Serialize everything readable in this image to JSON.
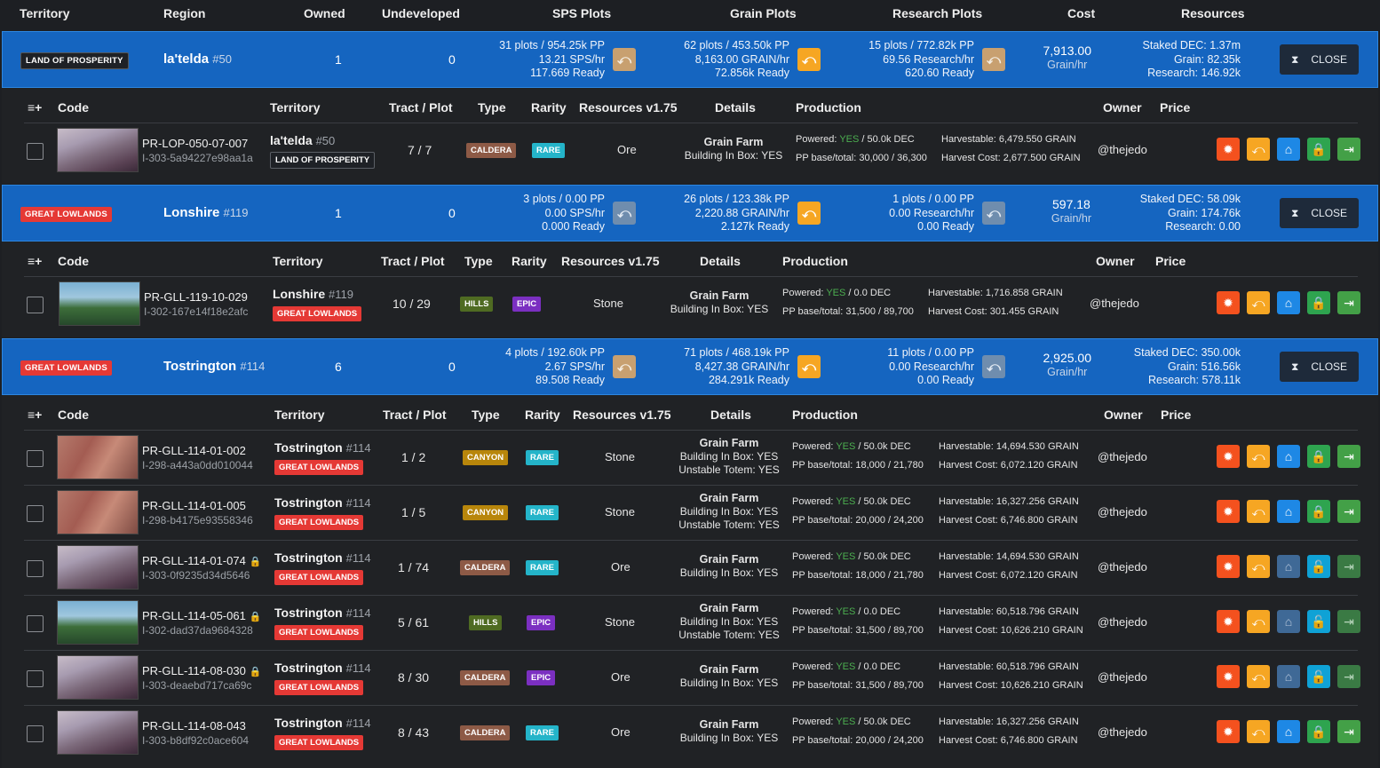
{
  "headers": {
    "territory": "Territory",
    "region": "Region",
    "owned": "Owned",
    "undeveloped": "Undeveloped",
    "sps": "SPS Plots",
    "grain": "Grain Plots",
    "research": "Research Plots",
    "cost": "Cost",
    "resources": "Resources"
  },
  "sub_headers": {
    "menu": "≡+",
    "code": "Code",
    "territory": "Territory",
    "tract": "Tract / Plot",
    "type": "Type",
    "rarity": "Rarity",
    "resources": "Resources v1.75",
    "details": "Details",
    "production": "Production",
    "owner": "Owner",
    "price": "Price"
  },
  "labels": {
    "close": "CLOSE",
    "grain_hr": "Grain/hr",
    "powered": "Powered:",
    "pp": "PP base/total:",
    "harvestable": "Harvestable:",
    "harvest_cost": "Harvest Cost:"
  },
  "groups": [
    {
      "tag": "LAND OF PROSPERITY",
      "name": "la'telda",
      "num": "#50",
      "owned": "1",
      "undeveloped": "0",
      "sps": [
        "31 plots / 954.25k PP",
        "13.21 SPS/hr",
        "117.669 Ready"
      ],
      "grain": [
        "62 plots / 453.50k PP",
        "8,163.00 GRAIN/hr",
        "72.856k Ready"
      ],
      "research": [
        "15 plots / 772.82k PP",
        "69.56 Research/hr",
        "620.60 Ready"
      ],
      "cost": "7,913.00",
      "res": [
        "Staked DEC: 1.37m",
        "Grain: 82.35k",
        "Research: 146.92k"
      ],
      "rows": [
        {
          "code": "PR-LOP-050-07-007",
          "hash": "I-303-5a94227e98aa1a",
          "tname": "la'telda",
          "tnum": "#50",
          "tag": "LAND OF PROSPERITY",
          "tract": "7 / 7",
          "type": "CALDERA",
          "rarity": "RARE",
          "resource": "Ore",
          "details": [
            "Grain Farm",
            "Building In Box: YES"
          ],
          "powered": "YES",
          "dec": "/ 50.0k DEC",
          "pp": "30,000 / 36,300",
          "harvestable": "6,479.550 GRAIN",
          "harvest_cost": "2,677.500 GRAIN",
          "owner": "@thejedo"
        }
      ]
    },
    {
      "tag": "GREAT LOWLANDS",
      "name": "Lonshire",
      "num": "#119",
      "owned": "1",
      "undeveloped": "0",
      "sps": [
        "3 plots / 0.00 PP",
        "0.00 SPS/hr",
        "0.000 Ready"
      ],
      "grain": [
        "26 plots / 123.38k PP",
        "2,220.88 GRAIN/hr",
        "2.127k Ready"
      ],
      "research": [
        "1 plots / 0.00 PP",
        "0.00 Research/hr",
        "0.00 Ready"
      ],
      "cost": "597.18",
      "res": [
        "Staked DEC: 58.09k",
        "Grain: 174.76k",
        "Research: 0.00"
      ],
      "rows": [
        {
          "code": "PR-GLL-119-10-029",
          "hash": "I-302-167e14f18e2afc",
          "tname": "Lonshire",
          "tnum": "#119",
          "tag": "GREAT LOWLANDS",
          "tract": "10 / 29",
          "type": "HILLS",
          "rarity": "EPIC",
          "resource": "Stone",
          "details": [
            "Grain Farm",
            "Building In Box: YES"
          ],
          "powered": "YES",
          "dec": "/ 0.0 DEC",
          "pp": "31,500 / 89,700",
          "harvestable": "1,716.858 GRAIN",
          "harvest_cost": "301.455 GRAIN",
          "owner": "@thejedo"
        }
      ]
    },
    {
      "tag": "GREAT LOWLANDS",
      "name": "Tostrington",
      "num": "#114",
      "owned": "6",
      "undeveloped": "0",
      "sps": [
        "4 plots / 192.60k PP",
        "2.67 SPS/hr",
        "89.508 Ready"
      ],
      "grain": [
        "71 plots / 468.19k PP",
        "8,427.38 GRAIN/hr",
        "284.291k Ready"
      ],
      "research": [
        "11 plots / 0.00 PP",
        "0.00 Research/hr",
        "0.00 Ready"
      ],
      "cost": "2,925.00",
      "res": [
        "Staked DEC: 350.00k",
        "Grain: 516.56k",
        "Research: 578.11k"
      ],
      "rows": [
        {
          "code": "PR-GLL-114-01-002",
          "hash": "I-298-a443a0dd010044",
          "tname": "Tostrington",
          "tnum": "#114",
          "tag": "GREAT LOWLANDS",
          "tract": "1 / 2",
          "type": "CANYON",
          "rarity": "RARE",
          "resource": "Stone",
          "details": [
            "Grain Farm",
            "Building In Box: YES",
            "Unstable Totem: YES"
          ],
          "powered": "YES",
          "dec": "/ 50.0k DEC",
          "pp": "18,000 / 21,780",
          "harvestable": "14,694.530 GRAIN",
          "harvest_cost": "6,072.120 GRAIN",
          "owner": "@thejedo"
        },
        {
          "code": "PR-GLL-114-01-005",
          "hash": "I-298-b4175e93558346",
          "tname": "Tostrington",
          "tnum": "#114",
          "tag": "GREAT LOWLANDS",
          "tract": "1 / 5",
          "type": "CANYON",
          "rarity": "RARE",
          "resource": "Stone",
          "details": [
            "Grain Farm",
            "Building In Box: YES",
            "Unstable Totem: YES"
          ],
          "powered": "YES",
          "dec": "/ 50.0k DEC",
          "pp": "20,000 / 24,200",
          "harvestable": "16,327.256 GRAIN",
          "harvest_cost": "6,746.800 GRAIN",
          "owner": "@thejedo"
        },
        {
          "code": "PR-GLL-114-01-074",
          "hash": "I-303-0f9235d34d5646",
          "tname": "Tostrington",
          "tnum": "#114",
          "tag": "GREAT LOWLANDS",
          "tract": "1 / 74",
          "type": "CALDERA",
          "rarity": "RARE",
          "resource": "Ore",
          "details": [
            "Grain Farm",
            "Building In Box: YES"
          ],
          "powered": "YES",
          "dec": "/ 50.0k DEC",
          "pp": "18,000 / 21,780",
          "harvestable": "14,694.530 GRAIN",
          "harvest_cost": "6,072.120 GRAIN",
          "owner": "@thejedo"
        },
        {
          "code": "PR-GLL-114-05-061",
          "hash": "I-302-dad37da9684328",
          "tname": "Tostrington",
          "tnum": "#114",
          "tag": "GREAT LOWLANDS",
          "tract": "5 / 61",
          "type": "HILLS",
          "rarity": "EPIC",
          "resource": "Stone",
          "details": [
            "Grain Farm",
            "Building In Box: YES",
            "Unstable Totem: YES"
          ],
          "powered": "YES",
          "dec": "/ 0.0 DEC",
          "pp": "31,500 / 89,700",
          "harvestable": "60,518.796 GRAIN",
          "harvest_cost": "10,626.210 GRAIN",
          "owner": "@thejedo"
        },
        {
          "code": "PR-GLL-114-08-030",
          "hash": "I-303-deaebd717ca69c",
          "tname": "Tostrington",
          "tnum": "#114",
          "tag": "GREAT LOWLANDS",
          "tract": "8 / 30",
          "type": "CALDERA",
          "rarity": "EPIC",
          "resource": "Ore",
          "details": [
            "Grain Farm",
            "Building In Box: YES"
          ],
          "powered": "YES",
          "dec": "/ 0.0 DEC",
          "pp": "31,500 / 89,700",
          "harvestable": "60,518.796 GRAIN",
          "harvest_cost": "10,626.210 GRAIN",
          "owner": "@thejedo"
        },
        {
          "code": "PR-GLL-114-08-043",
          "hash": "I-303-b8df92c0ace604",
          "tname": "Tostrington",
          "tnum": "#114",
          "tag": "GREAT LOWLANDS",
          "tract": "8 / 43",
          "type": "CALDERA",
          "rarity": "RARE",
          "resource": "Ore",
          "details": [
            "Grain Farm",
            "Building In Box: YES"
          ],
          "powered": "YES",
          "dec": "/ 50.0k DEC",
          "pp": "20,000 / 24,200",
          "harvestable": "16,327.256 GRAIN",
          "harvest_cost": "6,746.800 GRAIN",
          "owner": "@thejedo"
        }
      ]
    }
  ]
}
